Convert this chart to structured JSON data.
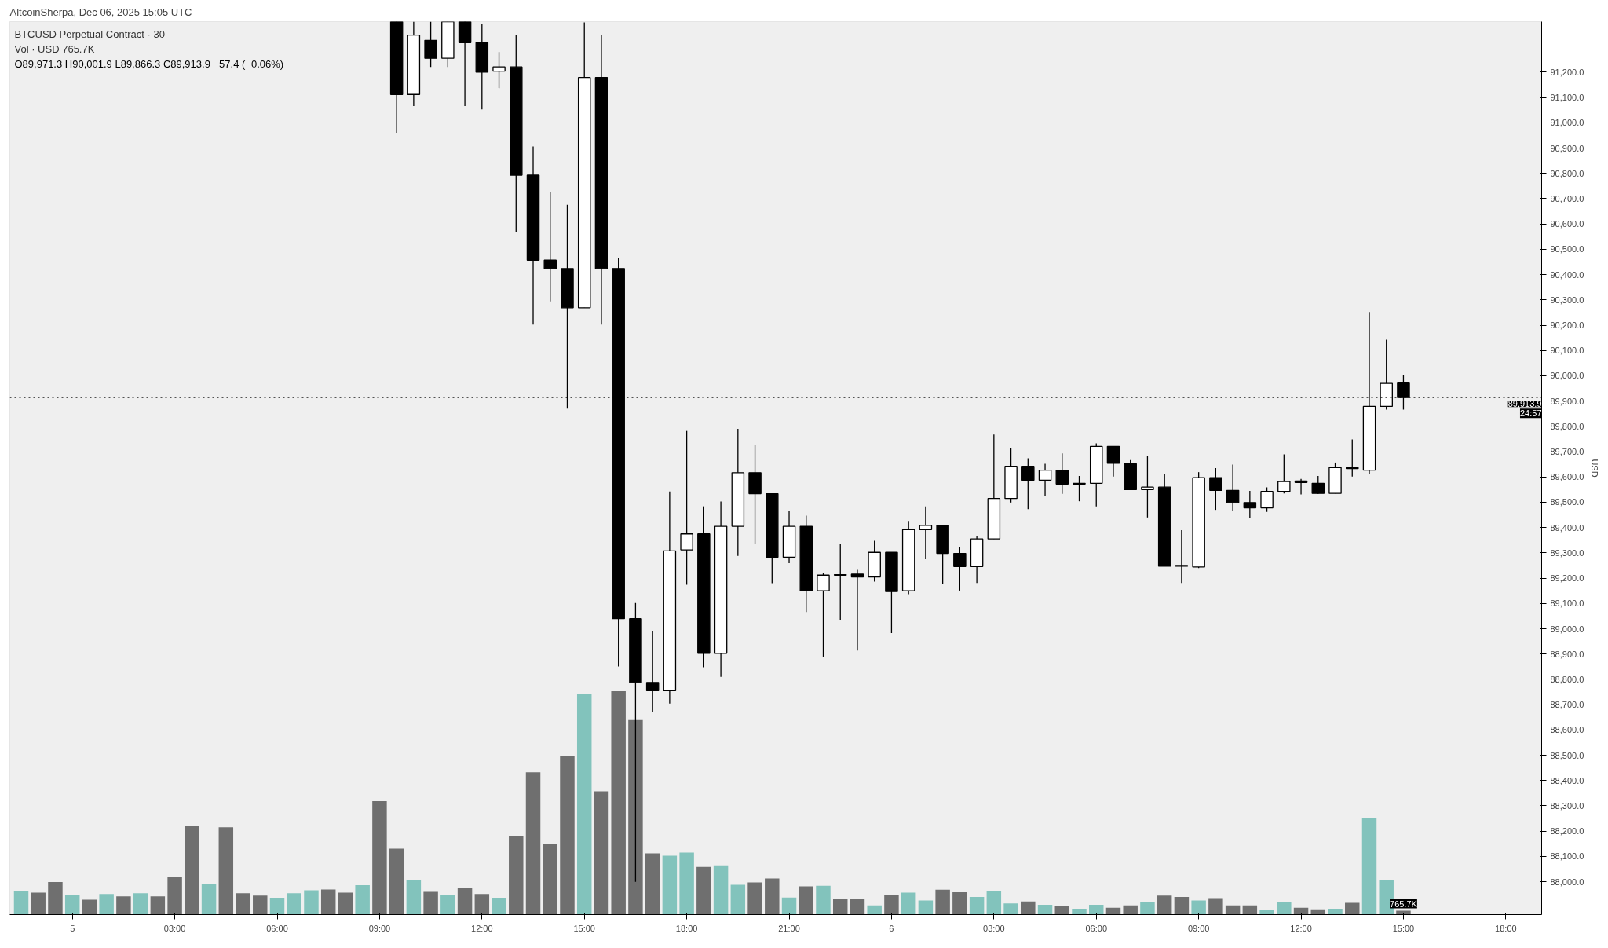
{
  "chart_data": {
    "type": "candlestick",
    "title": "BTCUSD Perpetual Contract · 30",
    "subtitle": "Vol · USD 765.7K",
    "ylabel": "USD",
    "annotations": [
      "AltcoinSherpa, Dec 06, 2025 15:05 UTC",
      "O89,971.3 H90,001.9 L89,866.3 C89,913.9 −57.4 (−0.06%)",
      "24:57"
    ],
    "x": [
      "2025-12-04T22:30",
      "2025-12-04T23:00",
      "2025-12-04T23:30",
      "2025-12-05T00:00",
      "2025-12-05T00:30",
      "2025-12-05T01:00",
      "2025-12-05T01:30",
      "2025-12-05T02:00",
      "2025-12-05T02:30",
      "2025-12-05T03:00",
      "2025-12-05T03:30",
      "2025-12-05T04:00",
      "2025-12-05T04:30",
      "2025-12-05T05:00",
      "2025-12-05T05:30",
      "2025-12-05T06:00",
      "2025-12-05T06:30",
      "2025-12-05T07:00",
      "2025-12-05T07:30",
      "2025-12-05T08:00",
      "2025-12-05T08:30",
      "2025-12-05T09:00",
      "2025-12-05T09:30",
      "2025-12-05T10:00",
      "2025-12-05T10:30",
      "2025-12-05T11:00",
      "2025-12-05T11:30",
      "2025-12-05T12:00",
      "2025-12-05T12:30",
      "2025-12-05T13:00",
      "2025-12-05T13:30",
      "2025-12-05T14:00",
      "2025-12-05T14:30",
      "2025-12-05T15:00",
      "2025-12-05T15:30",
      "2025-12-05T16:00",
      "2025-12-05T16:30",
      "2025-12-05T17:00",
      "2025-12-05T17:30",
      "2025-12-05T18:00",
      "2025-12-05T18:30",
      "2025-12-05T19:00",
      "2025-12-05T19:30",
      "2025-12-05T20:00",
      "2025-12-05T20:30",
      "2025-12-05T21:00",
      "2025-12-05T21:30",
      "2025-12-05T22:00",
      "2025-12-05T22:30",
      "2025-12-05T23:00",
      "2025-12-05T23:30",
      "2025-12-06T00:00",
      "2025-12-06T00:30",
      "2025-12-06T01:00",
      "2025-12-06T01:30",
      "2025-12-06T02:00",
      "2025-12-06T02:30",
      "2025-12-06T03:00",
      "2025-12-06T03:30",
      "2025-12-06T04:00",
      "2025-12-06T04:30",
      "2025-12-06T05:00",
      "2025-12-06T05:30",
      "2025-12-06T06:00",
      "2025-12-06T06:30",
      "2025-12-06T07:00",
      "2025-12-06T07:30",
      "2025-12-06T08:00",
      "2025-12-06T08:30",
      "2025-12-06T09:00",
      "2025-12-06T09:30",
      "2025-12-06T10:00",
      "2025-12-06T10:30",
      "2025-12-06T11:00",
      "2025-12-06T11:30",
      "2025-12-06T12:00",
      "2025-12-06T12:30",
      "2025-12-06T13:00",
      "2025-12-06T13:30",
      "2025-12-06T14:00",
      "2025-12-06T14:30",
      "2025-12-06T15:00"
    ],
    "xlim": [
      "2025-12-04T22:10",
      "2025-12-06T19:03"
    ],
    "xticks": [
      {
        "value": "2025-12-05T00:00",
        "label": "5"
      },
      {
        "value": "2025-12-05T03:00",
        "label": "03:00"
      },
      {
        "value": "2025-12-05T06:00",
        "label": "06:00"
      },
      {
        "value": "2025-12-05T09:00",
        "label": "09:00"
      },
      {
        "value": "2025-12-05T12:00",
        "label": "12:00"
      },
      {
        "value": "2025-12-05T15:00",
        "label": "15:00"
      },
      {
        "value": "2025-12-05T18:00",
        "label": "18:00"
      },
      {
        "value": "2025-12-05T21:00",
        "label": "21:00"
      },
      {
        "value": "2025-12-06T00:00",
        "label": "6"
      },
      {
        "value": "2025-12-06T03:00",
        "label": "03:00"
      },
      {
        "value": "2025-12-06T06:00",
        "label": "06:00"
      },
      {
        "value": "2025-12-06T09:00",
        "label": "09:00"
      },
      {
        "value": "2025-12-06T12:00",
        "label": "12:00"
      },
      {
        "value": "2025-12-06T15:00",
        "label": "15:00"
      },
      {
        "value": "2025-12-06T18:00",
        "label": "18:00"
      }
    ],
    "ylim": [
      87870,
      91400
    ],
    "yticks": [
      {
        "value": 88000,
        "label": "88,000.0"
      },
      {
        "value": 88100,
        "label": "88,100.0"
      },
      {
        "value": 88200,
        "label": "88,200.0"
      },
      {
        "value": 88300,
        "label": "88,300.0"
      },
      {
        "value": 88400,
        "label": "88,400.0"
      },
      {
        "value": 88500,
        "label": "88,500.0"
      },
      {
        "value": 88600,
        "label": "88,600.0"
      },
      {
        "value": 88700,
        "label": "88,700.0"
      },
      {
        "value": 88800,
        "label": "88,800.0"
      },
      {
        "value": 88900,
        "label": "88,900.0"
      },
      {
        "value": 89000,
        "label": "89,000.0"
      },
      {
        "value": 89100,
        "label": "89,100.0"
      },
      {
        "value": 89200,
        "label": "89,200.0"
      },
      {
        "value": 89300,
        "label": "89,300.0"
      },
      {
        "value": 89400,
        "label": "89,400.0"
      },
      {
        "value": 89500,
        "label": "89,500.0"
      },
      {
        "value": 89600,
        "label": "89,600.0"
      },
      {
        "value": 89700,
        "label": "89,700.0"
      },
      {
        "value": 89800,
        "label": "89,800.0"
      },
      {
        "value": 89900,
        "label": "89,900.0"
      },
      {
        "value": 90000,
        "label": "90,000.0"
      },
      {
        "value": 90100,
        "label": "90,100.0"
      },
      {
        "value": 90200,
        "label": "90,200.0"
      },
      {
        "value": 90300,
        "label": "90,300.0"
      },
      {
        "value": 90400,
        "label": "90,400.0"
      },
      {
        "value": 90500,
        "label": "90,500.0"
      },
      {
        "value": 90600,
        "label": "90,600.0"
      },
      {
        "value": 90700,
        "label": "90,700.0"
      },
      {
        "value": 90800,
        "label": "90,800.0"
      },
      {
        "value": 90900,
        "label": "90,900.0"
      },
      {
        "value": 91000,
        "label": "91,000.0"
      },
      {
        "value": 91100,
        "label": "91,100.0"
      },
      {
        "value": 91200,
        "label": "91,200.0"
      }
    ],
    "y2lim": [
      0,
      175000
    ],
    "grid": false,
    "ref_lines": [
      {
        "axis": "y",
        "value": 89913.9,
        "label": "89,913.9",
        "line_style": "dotted",
        "color": "#000000"
      }
    ],
    "series": [
      {
        "type": "bar",
        "axis": "y2",
        "values": [
          4670,
          4310,
          6380,
          3830,
          2930,
          4040,
          3570,
          4210,
          3570,
          7340,
          17310,
          5950,
          17110,
          4210,
          3750,
          3300,
          4210,
          4770,
          4940,
          4310,
          5770,
          22250,
          12920,
          6860,
          4480,
          3840,
          5310,
          4040,
          3300,
          15470,
          27910,
          13920,
          31050,
          43340,
          24160,
          43770,
          38120,
          11990,
          11530,
          12170,
          9360,
          9670,
          5840,
          6320,
          7080,
          3350,
          5550,
          5650,
          3060,
          3060,
          1820,
          3830,
          4310,
          2780,
          4880,
          4400,
          3450,
          4590,
          2200,
          2580,
          1910,
          1630,
          1150,
          1910,
          1340,
          1820,
          2390,
          3730,
          3450,
          2780,
          3250,
          1820,
          1820,
          960,
          2390,
          1340,
          1050,
          1150,
          2300,
          18840,
          6790,
          765.7
        ],
        "colors": [
          "#82c3bc",
          "#6f6f6f",
          "#6f6f6f",
          "#82c3bc",
          "#6f6f6f",
          "#82c3bc",
          "#6f6f6f",
          "#82c3bc",
          "#6f6f6f",
          "#6f6f6f",
          "#6f6f6f",
          "#82c3bc",
          "#6f6f6f",
          "#6f6f6f",
          "#6f6f6f",
          "#82c3bc",
          "#82c3bc",
          "#82c3bc",
          "#6f6f6f",
          "#6f6f6f",
          "#82c3bc",
          "#6f6f6f",
          "#6f6f6f",
          "#82c3bc",
          "#6f6f6f",
          "#82c3bc",
          "#6f6f6f",
          "#6f6f6f",
          "#82c3bc",
          "#6f6f6f",
          "#6f6f6f",
          "#6f6f6f",
          "#6f6f6f",
          "#82c3bc",
          "#6f6f6f",
          "#6f6f6f",
          "#6f6f6f",
          "#6f6f6f",
          "#82c3bc",
          "#82c3bc",
          "#6f6f6f",
          "#82c3bc",
          "#82c3bc",
          "#6f6f6f",
          "#6f6f6f",
          "#82c3bc",
          "#6f6f6f",
          "#82c3bc",
          "#6f6f6f",
          "#6f6f6f",
          "#82c3bc",
          "#6f6f6f",
          "#82c3bc",
          "#82c3bc",
          "#6f6f6f",
          "#6f6f6f",
          "#82c3bc",
          "#82c3bc",
          "#82c3bc",
          "#6f6f6f",
          "#82c3bc",
          "#6f6f6f",
          "#82c3bc",
          "#82c3bc",
          "#6f6f6f",
          "#6f6f6f",
          "#82c3bc",
          "#6f6f6f",
          "#6f6f6f",
          "#82c3bc",
          "#6f6f6f",
          "#6f6f6f",
          "#6f6f6f",
          "#82c3bc",
          "#82c3bc",
          "#6f6f6f",
          "#6f6f6f",
          "#82c3bc",
          "#6f6f6f",
          "#82c3bc",
          "#82c3bc",
          "#6f6f6f"
        ],
        "value_labels": [
          null,
          null,
          null,
          null,
          null,
          null,
          null,
          null,
          null,
          null,
          null,
          null,
          null,
          null,
          null,
          null,
          null,
          null,
          null,
          null,
          null,
          null,
          null,
          null,
          null,
          null,
          null,
          null,
          null,
          null,
          null,
          null,
          null,
          null,
          null,
          null,
          null,
          null,
          null,
          null,
          null,
          null,
          null,
          null,
          null,
          null,
          null,
          null,
          null,
          null,
          null,
          null,
          null,
          null,
          null,
          null,
          null,
          null,
          null,
          null,
          null,
          null,
          null,
          null,
          null,
          null,
          null,
          null,
          null,
          null,
          null,
          null,
          null,
          null,
          null,
          null,
          null,
          null,
          null,
          null,
          null,
          "765.7K"
        ]
      },
      {
        "color": "#000000",
        "ohlc": [
          null,
          null,
          null,
          null,
          null,
          null,
          null,
          null,
          null,
          null,
          null,
          null,
          null,
          null,
          null,
          null,
          null,
          null,
          null,
          null,
          null,
          null,
          [
            91400,
            91400,
            90961,
            91112
          ],
          [
            91112,
            91400,
            91066,
            91347
          ],
          [
            91326,
            91400,
            91221,
            91255
          ],
          [
            91255,
            91400,
            91221,
            91400
          ],
          [
            91400,
            91400,
            91066,
            91317
          ],
          [
            91317,
            91389,
            91053,
            91200
          ],
          [
            91204,
            91280,
            91137,
            91221
          ],
          [
            91221,
            91347,
            90567,
            90793
          ],
          [
            90793,
            90906,
            90202,
            90457
          ],
          [
            90457,
            90726,
            90294,
            90424
          ],
          [
            90424,
            90676,
            89870,
            90269
          ],
          [
            90269,
            91397,
            90269,
            91179
          ],
          [
            91179,
            91347,
            90202,
            90424
          ],
          [
            90424,
            90466,
            88851,
            89040
          ],
          [
            89040,
            89102,
            88000,
            88788
          ],
          [
            88788,
            88989,
            88670,
            88755
          ],
          [
            88755,
            89543,
            88704,
            89308
          ],
          [
            89312,
            89782,
            89174,
            89375
          ],
          [
            89375,
            89484,
            88848,
            88903
          ],
          [
            88903,
            89503,
            88810,
            89405
          ],
          [
            89405,
            89790,
            89288,
            89617
          ],
          [
            89617,
            89725,
            89337,
            89534
          ],
          [
            89534,
            89534,
            89180,
            89283
          ],
          [
            89283,
            89467,
            89259,
            89405
          ],
          [
            89405,
            89447,
            89066,
            89150
          ],
          [
            89150,
            89220,
            88890,
            89212
          ],
          [
            89214,
            89334,
            89035,
            89212
          ],
          [
            89216,
            89233,
            88914,
            89205
          ],
          [
            89205,
            89348,
            89186,
            89302
          ],
          [
            89302,
            89302,
            88983,
            89147
          ],
          [
            89150,
            89426,
            89137,
            89392
          ],
          [
            89392,
            89484,
            89275,
            89409
          ],
          [
            89409,
            89409,
            89176,
            89298
          ],
          [
            89298,
            89323,
            89151,
            89246
          ],
          [
            89246,
            89368,
            89181,
            89355
          ],
          [
            89355,
            89768,
            89355,
            89515
          ],
          [
            89515,
            89715,
            89499,
            89642
          ],
          [
            89642,
            89674,
            89473,
            89587
          ],
          [
            89587,
            89652,
            89524,
            89627
          ],
          [
            89627,
            89693,
            89533,
            89572
          ],
          [
            89572,
            89604,
            89504,
            89575
          ],
          [
            89575,
            89733,
            89484,
            89721
          ],
          [
            89721,
            89721,
            89602,
            89654
          ],
          [
            89652,
            89667,
            89550,
            89550
          ],
          [
            89550,
            89683,
            89440,
            89560
          ],
          [
            89560,
            89611,
            89247,
            89247
          ],
          [
            89250,
            89390,
            89181,
            89247
          ],
          [
            89244,
            89619,
            89240,
            89597
          ],
          [
            89597,
            89635,
            89470,
            89547
          ],
          [
            89547,
            89649,
            89466,
            89499
          ],
          [
            89499,
            89545,
            89436,
            89478
          ],
          [
            89478,
            89559,
            89462,
            89543
          ],
          [
            89543,
            89689,
            89535,
            89582
          ],
          [
            89584,
            89592,
            89531,
            89578
          ],
          [
            89575,
            89604,
            89533,
            89535
          ],
          [
            89535,
            89657,
            89535,
            89637
          ],
          [
            89637,
            89748,
            89602,
            89633
          ],
          [
            89627,
            90252,
            89612,
            89879
          ],
          [
            89879,
            90143,
            89866,
            89970
          ],
          [
            89971.3,
            90001.9,
            89866.3,
            89913.9
          ]
        ]
      }
    ]
  }
}
